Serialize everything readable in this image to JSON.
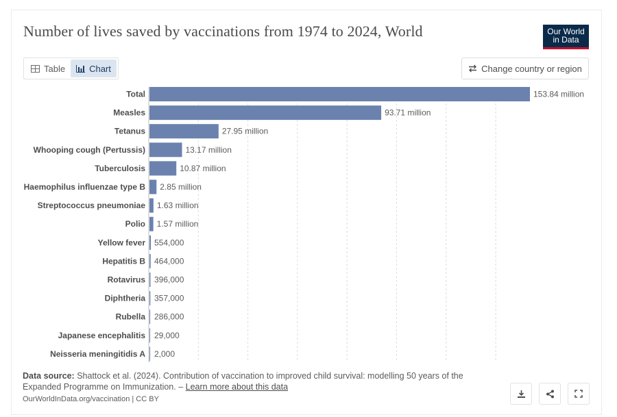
{
  "header": {
    "title": "Number of lives saved by vaccinations from 1974 to 2024, World",
    "logo_line1": "Our World",
    "logo_line2": "in Data"
  },
  "controls": {
    "tab_table": "Table",
    "tab_chart": "Chart",
    "change_region": "Change country or region"
  },
  "colors": {
    "bar": "#6b82ae",
    "accent": "#c8102e",
    "brand": "#0b2a4a"
  },
  "chart_data": {
    "type": "bar",
    "orientation": "horizontal",
    "title": "Number of lives saved by vaccinations from 1974 to 2024, World",
    "unit": "lives",
    "xlim": [
      0,
      153840000
    ],
    "grid": true,
    "categories": [
      "Total",
      "Measles",
      "Tetanus",
      "Whooping cough (Pertussis)",
      "Tuberculosis",
      "Haemophilus influenzae type B",
      "Streptococcus pneumoniae",
      "Polio",
      "Yellow fever",
      "Hepatitis B",
      "Rotavirus",
      "Diphtheria",
      "Rubella",
      "Japanese encephalitis",
      "Neisseria meningitidis A"
    ],
    "values": [
      153840000,
      93710000,
      27950000,
      13170000,
      10870000,
      2850000,
      1630000,
      1570000,
      554000,
      464000,
      396000,
      357000,
      286000,
      29000,
      2000
    ],
    "labels": [
      "153.84 million",
      "93.71 million",
      "27.95 million",
      "13.17 million",
      "10.87 million",
      "2.85 million",
      "1.63 million",
      "1.57 million",
      "554,000",
      "464,000",
      "396,000",
      "357,000",
      "286,000",
      "29,000",
      "2,000"
    ]
  },
  "footer": {
    "source_label": "Data source:",
    "source_text": "Shattock et al. (2024). Contribution of vaccination to improved child survival: modelling 50 years of the Expanded Programme on Immunization. –",
    "learn_more": "Learn more about this data",
    "url_license": "OurWorldInData.org/vaccination | CC BY"
  }
}
